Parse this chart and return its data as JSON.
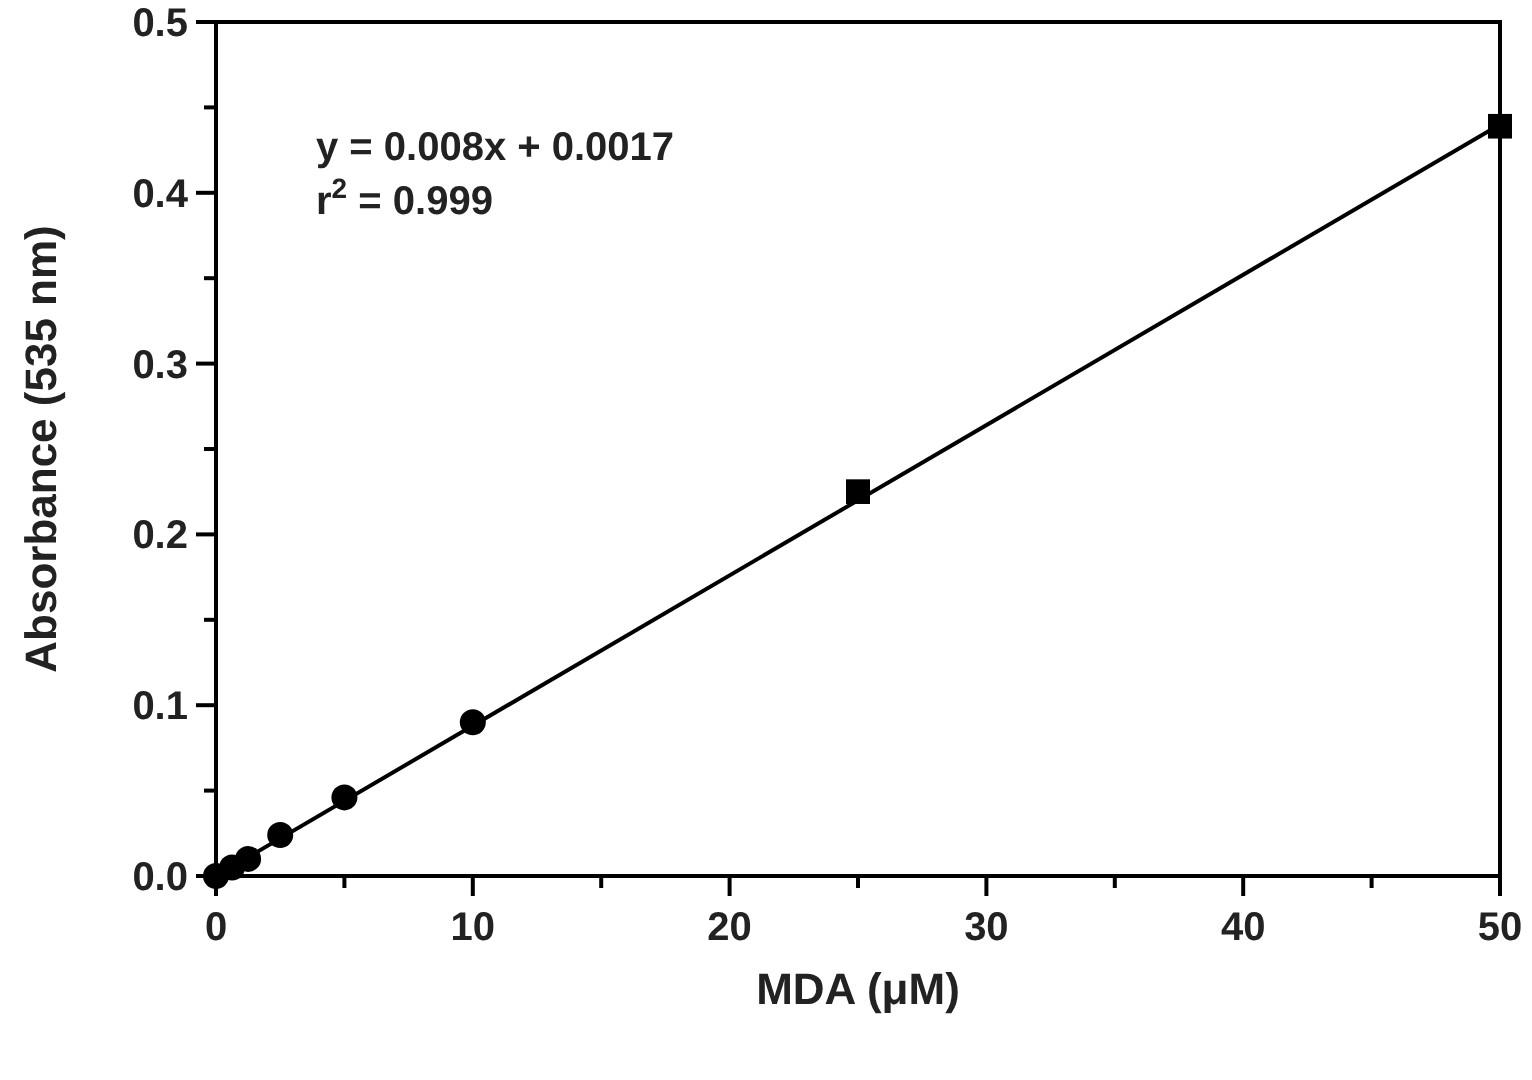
{
  "chart_data": {
    "type": "scatter",
    "xlabel": "MDA (μM)",
    "ylabel": "Absorbance (535 nm)",
    "annotations": [
      "y = 0.008x + 0.0017",
      "r$^{2}$ = 0.999"
    ],
    "xlim": [
      0,
      50
    ],
    "ylim": [
      0,
      0.5
    ],
    "xticks": [
      0,
      {
        "value": 5,
        "label": null
      },
      10,
      {
        "value": 15,
        "label": null
      },
      20,
      {
        "value": 25,
        "label": null
      },
      30,
      {
        "value": 35,
        "label": null
      },
      40,
      {
        "value": 45,
        "label": null
      },
      50
    ],
    "yticks": [
      {
        "value": 0,
        "label": "0.0"
      },
      {
        "value": 0.05,
        "label": null
      },
      0.1,
      {
        "value": 0.15,
        "label": null
      },
      0.2,
      {
        "value": 0.25,
        "label": null
      },
      0.3,
      {
        "value": 0.35,
        "label": null
      },
      0.4,
      {
        "value": 0.45,
        "label": null
      },
      0.5
    ],
    "series": [
      {
        "type": "line",
        "color": "#000000",
        "x": [
          0,
          50
        ],
        "values": [
          0.0,
          0.44
        ],
        "line_style": "solid"
      },
      {
        "color": "#000000",
        "marker": "circle",
        "x": [
          0,
          0.625,
          1.25,
          2.5,
          5,
          10
        ],
        "values": [
          0,
          0.005,
          0.01,
          0.024,
          0.046,
          0.09
        ]
      },
      {
        "color": "#000000",
        "marker": "square",
        "x": [
          25,
          50
        ],
        "values": [
          0.225,
          0.439
        ],
        "errors": [
          0.006,
          0.006
        ]
      }
    ]
  }
}
